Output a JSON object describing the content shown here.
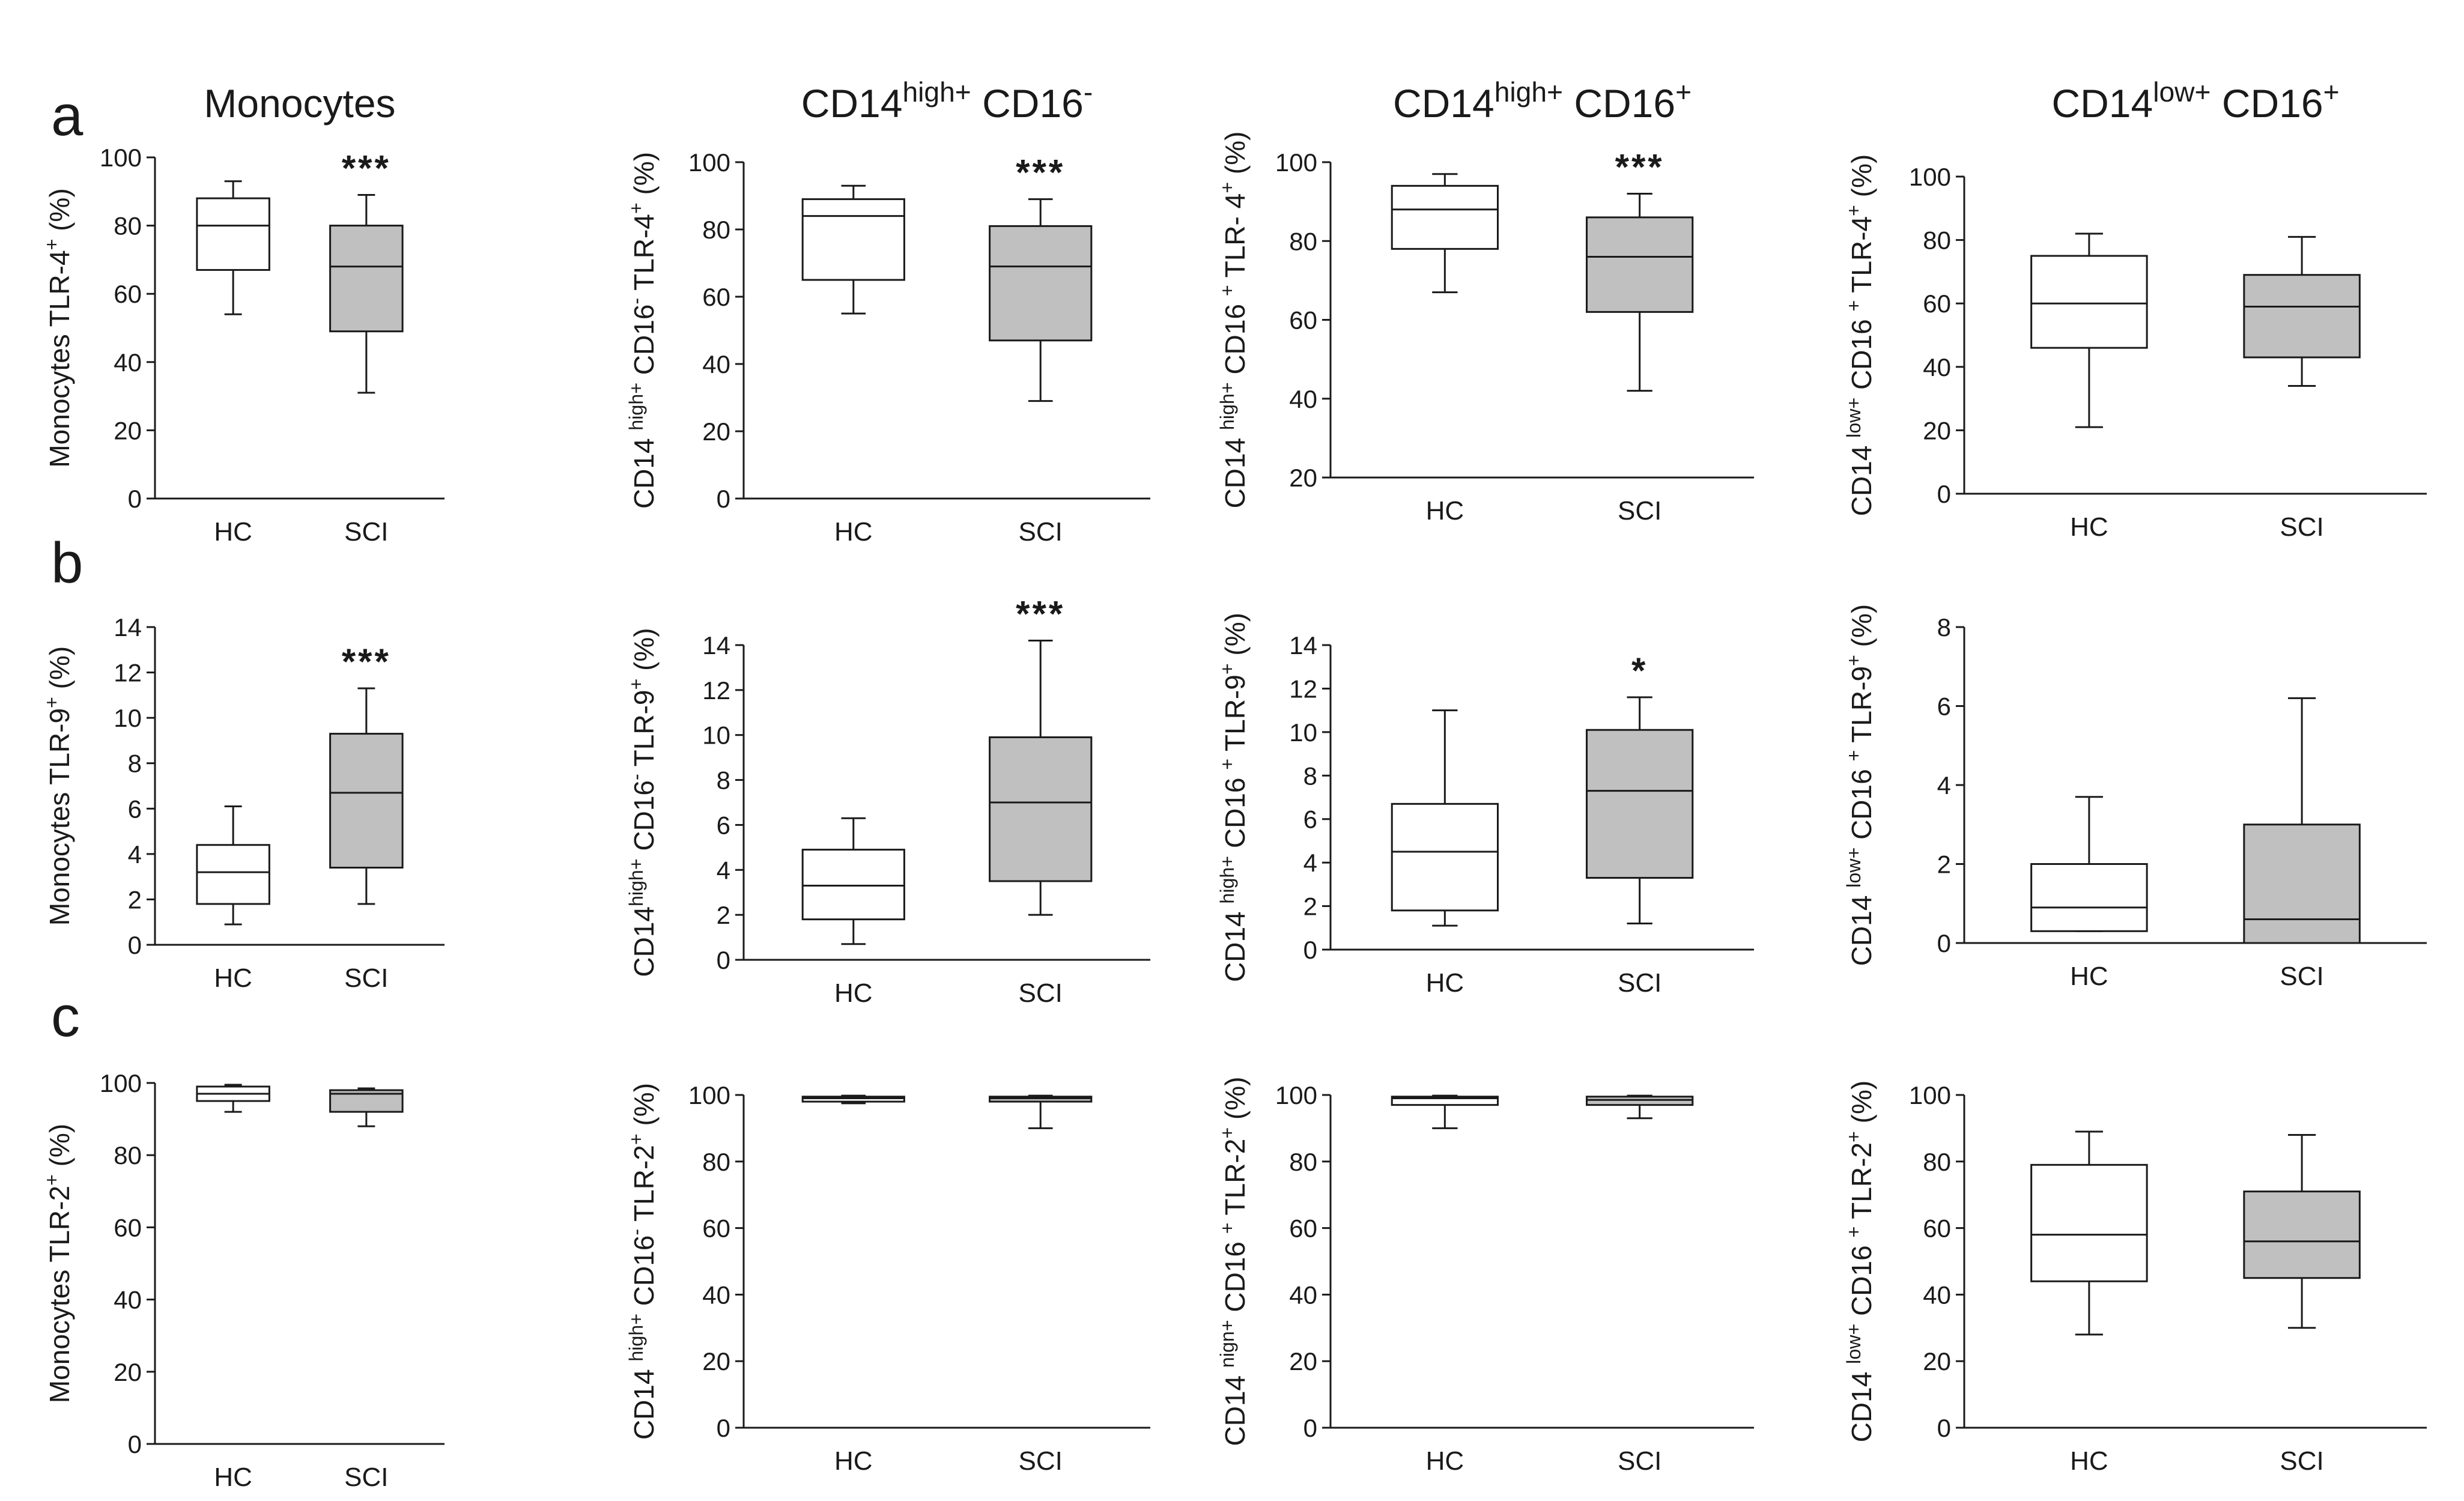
{
  "figure": {
    "column_titles": [
      {
        "main": "Monocytes",
        "parts": []
      },
      {
        "main": "",
        "parts": [
          {
            "t": "CD14",
            "s": "n"
          },
          {
            "t": "high+",
            "s": "sup"
          },
          {
            "t": " CD16",
            "s": "n"
          },
          {
            "t": "-",
            "s": "sup"
          }
        ]
      },
      {
        "main": "",
        "parts": [
          {
            "t": "CD14",
            "s": "n"
          },
          {
            "t": "high+",
            "s": "sup"
          },
          {
            "t": " CD16",
            "s": "n"
          },
          {
            "t": "+",
            "s": "sup"
          }
        ]
      },
      {
        "main": "",
        "parts": [
          {
            "t": "CD14",
            "s": "n"
          },
          {
            "t": "low+",
            "s": "sup"
          },
          {
            "t": " CD16",
            "s": "n"
          },
          {
            "t": "+",
            "s": "sup"
          }
        ]
      }
    ],
    "row_letters": [
      "a",
      "b",
      "c"
    ],
    "colors": {
      "hc_fill": "#ffffff",
      "sci_fill": "#c0c0c0",
      "stroke": "#1a1a1a"
    }
  },
  "chart_data": [
    {
      "id": "a1",
      "type": "box",
      "categories": [
        "HC",
        "SCI"
      ],
      "ylim": [
        0,
        100
      ],
      "ticks": [
        0,
        20,
        40,
        60,
        80,
        100
      ],
      "ylabel": [
        {
          "t": "Monocytes TLR-4",
          "s": "n"
        },
        {
          "t": "+",
          "s": "sup"
        },
        {
          "t": " (%)",
          "s": "n"
        }
      ],
      "boxes": [
        {
          "min": 54,
          "q1": 67,
          "median": 80,
          "q3": 88,
          "max": 93
        },
        {
          "min": 31,
          "q1": 49,
          "median": 68,
          "q3": 80,
          "max": 89
        }
      ],
      "significance": "***"
    },
    {
      "id": "a2",
      "type": "box",
      "categories": [
        "HC",
        "SCI"
      ],
      "ylim": [
        0,
        100
      ],
      "ticks": [
        0,
        20,
        40,
        60,
        80,
        100
      ],
      "ylabel": [
        {
          "t": "CD14 ",
          "s": "n"
        },
        {
          "t": "high+",
          "s": "sup"
        },
        {
          "t": " CD16",
          "s": "n"
        },
        {
          "t": "-",
          "s": "sup"
        },
        {
          "t": " TLR-4",
          "s": "n"
        },
        {
          "t": "+",
          "s": "sup"
        },
        {
          "t": " (%)",
          "s": "n"
        }
      ],
      "boxes": [
        {
          "min": 55,
          "q1": 65,
          "median": 84,
          "q3": 89,
          "max": 93
        },
        {
          "min": 29,
          "q1": 47,
          "median": 69,
          "q3": 81,
          "max": 89
        }
      ],
      "significance": "***"
    },
    {
      "id": "a3",
      "type": "box",
      "categories": [
        "HC",
        "SCI"
      ],
      "ylim": [
        20,
        100
      ],
      "ticks": [
        20,
        40,
        60,
        80,
        100
      ],
      "ylabel": [
        {
          "t": "CD14 ",
          "s": "n"
        },
        {
          "t": "high+",
          "s": "sup"
        },
        {
          "t": " CD16 ",
          "s": "n"
        },
        {
          "t": "+",
          "s": "sup"
        },
        {
          "t": " TLR- 4",
          "s": "n"
        },
        {
          "t": "+",
          "s": "sup"
        },
        {
          "t": " (%)",
          "s": "n"
        }
      ],
      "boxes": [
        {
          "min": 67,
          "q1": 78,
          "median": 88,
          "q3": 94,
          "max": 97
        },
        {
          "min": 42,
          "q1": 62,
          "median": 76,
          "q3": 86,
          "max": 92
        }
      ],
      "significance": "***"
    },
    {
      "id": "a4",
      "type": "box",
      "categories": [
        "HC",
        "SCI"
      ],
      "ylim": [
        0,
        100
      ],
      "ticks": [
        0,
        20,
        40,
        60,
        80,
        100
      ],
      "ylabel": [
        {
          "t": "CD14 ",
          "s": "n"
        },
        {
          "t": "low+",
          "s": "sup"
        },
        {
          "t": " CD16 ",
          "s": "n"
        },
        {
          "t": "+",
          "s": "sup"
        },
        {
          "t": " TLR-4",
          "s": "n"
        },
        {
          "t": "+",
          "s": "sup"
        },
        {
          "t": " (%)",
          "s": "n"
        }
      ],
      "boxes": [
        {
          "min": 21,
          "q1": 46,
          "median": 60,
          "q3": 75,
          "max": 82
        },
        {
          "min": 34,
          "q1": 43,
          "median": 59,
          "q3": 69,
          "max": 81
        }
      ],
      "significance": ""
    },
    {
      "id": "b1",
      "type": "box",
      "categories": [
        "HC",
        "SCI"
      ],
      "ylim": [
        0,
        14
      ],
      "ticks": [
        0,
        2,
        4,
        6,
        8,
        10,
        12,
        14
      ],
      "ylabel": [
        {
          "t": "Monocytes TLR-9",
          "s": "n"
        },
        {
          "t": "+",
          "s": "sup"
        },
        {
          "t": " (%)",
          "s": "n"
        }
      ],
      "boxes": [
        {
          "min": 0.9,
          "q1": 1.8,
          "median": 3.2,
          "q3": 4.4,
          "max": 6.1
        },
        {
          "min": 1.8,
          "q1": 3.4,
          "median": 6.7,
          "q3": 9.3,
          "max": 11.3
        }
      ],
      "significance": "***"
    },
    {
      "id": "b2",
      "type": "box",
      "categories": [
        "HC",
        "SCI"
      ],
      "ylim": [
        0,
        14
      ],
      "ticks": [
        0,
        2,
        4,
        6,
        8,
        10,
        12,
        14
      ],
      "ylabel": [
        {
          "t": "CD14",
          "s": "n"
        },
        {
          "t": "high+",
          "s": "sup"
        },
        {
          "t": " CD16",
          "s": "n"
        },
        {
          "t": "-",
          "s": "sup"
        },
        {
          "t": " TLR-9",
          "s": "n"
        },
        {
          "t": "+",
          "s": "sup"
        },
        {
          "t": " (%)",
          "s": "n"
        }
      ],
      "boxes": [
        {
          "min": 0.7,
          "q1": 1.8,
          "median": 3.3,
          "q3": 4.9,
          "max": 6.3
        },
        {
          "min": 2.0,
          "q1": 3.5,
          "median": 7.0,
          "q3": 9.9,
          "max": 14.2
        }
      ],
      "significance": "***"
    },
    {
      "id": "b3",
      "type": "box",
      "categories": [
        "HC",
        "SCI"
      ],
      "ylim": [
        0,
        14
      ],
      "ticks": [
        0,
        2,
        4,
        6,
        8,
        10,
        12,
        14
      ],
      "ylabel": [
        {
          "t": "CD14 ",
          "s": "n"
        },
        {
          "t": "high+",
          "s": "sup"
        },
        {
          "t": " CD16 ",
          "s": "n"
        },
        {
          "t": "+",
          "s": "sup"
        },
        {
          "t": " TLR-9",
          "s": "n"
        },
        {
          "t": "+",
          "s": "sup"
        },
        {
          "t": " (%)",
          "s": "n"
        }
      ],
      "boxes": [
        {
          "min": 1.1,
          "q1": 1.8,
          "median": 4.5,
          "q3": 6.7,
          "max": 11.0
        },
        {
          "min": 1.2,
          "q1": 3.3,
          "median": 7.3,
          "q3": 10.1,
          "max": 11.6
        }
      ],
      "significance": "*"
    },
    {
      "id": "b4",
      "type": "box",
      "categories": [
        "HC",
        "SCI"
      ],
      "ylim": [
        0,
        8
      ],
      "ticks": [
        0,
        2,
        4,
        6,
        8
      ],
      "ylabel": [
        {
          "t": "CD14 ",
          "s": "n"
        },
        {
          "t": "low+",
          "s": "sup"
        },
        {
          "t": " CD16 ",
          "s": "n"
        },
        {
          "t": "+",
          "s": "sup"
        },
        {
          "t": " TLR-9",
          "s": "n"
        },
        {
          "t": "+",
          "s": "sup"
        },
        {
          "t": " (%)",
          "s": "n"
        }
      ],
      "boxes": [
        {
          "min": 0.3,
          "q1": 0.3,
          "median": 0.9,
          "q3": 2.0,
          "max": 3.7
        },
        {
          "min": 0,
          "q1": 0,
          "median": 0.6,
          "q3": 3.0,
          "max": 6.2
        }
      ],
      "significance": ""
    },
    {
      "id": "c1",
      "type": "box",
      "categories": [
        "HC",
        "SCI"
      ],
      "ylim": [
        0,
        100
      ],
      "ticks": [
        0,
        20,
        40,
        60,
        80,
        100
      ],
      "ylabel": [
        {
          "t": "Monocytes  TLR-2",
          "s": "n"
        },
        {
          "t": "+",
          "s": "sup"
        },
        {
          "t": " (%)",
          "s": "n"
        }
      ],
      "boxes": [
        {
          "min": 92,
          "q1": 95,
          "median": 97,
          "q3": 99,
          "max": 99.5
        },
        {
          "min": 88,
          "q1": 92,
          "median": 97,
          "q3": 98,
          "max": 98.5
        }
      ],
      "significance": ""
    },
    {
      "id": "c2",
      "type": "box",
      "categories": [
        "HC",
        "SCI"
      ],
      "ylim": [
        0,
        100
      ],
      "ticks": [
        0,
        20,
        40,
        60,
        80,
        100
      ],
      "ylabel": [
        {
          "t": "CD14 ",
          "s": "n"
        },
        {
          "t": "high+",
          "s": "sup"
        },
        {
          "t": " CD16",
          "s": "n"
        },
        {
          "t": "-",
          "s": "sup"
        },
        {
          "t": " TLR-2",
          "s": "n"
        },
        {
          "t": "+",
          "s": "sup"
        },
        {
          "t": " (%)",
          "s": "n"
        }
      ],
      "boxes": [
        {
          "min": 97.5,
          "q1": 98,
          "median": 99,
          "q3": 99.5,
          "max": 99.8
        },
        {
          "min": 90,
          "q1": 98,
          "median": 99,
          "q3": 99.5,
          "max": 99.8
        }
      ],
      "significance": ""
    },
    {
      "id": "c3",
      "type": "box",
      "categories": [
        "HC",
        "SCI"
      ],
      "ylim": [
        0,
        100
      ],
      "ticks": [
        0,
        20,
        40,
        60,
        80,
        100
      ],
      "ylabel": [
        {
          "t": "CD14 ",
          "s": "n"
        },
        {
          "t": "nign+",
          "s": "sup"
        },
        {
          "t": " CD16 ",
          "s": "n"
        },
        {
          "t": "+",
          "s": "sup"
        },
        {
          "t": " TLR-2",
          "s": "n"
        },
        {
          "t": "+",
          "s": "sup"
        },
        {
          "t": " (%)",
          "s": "n"
        }
      ],
      "boxes": [
        {
          "min": 90,
          "q1": 97,
          "median": 99,
          "q3": 99.5,
          "max": 99.8
        },
        {
          "min": 93,
          "q1": 97,
          "median": 98.5,
          "q3": 99.5,
          "max": 99.8
        }
      ],
      "significance": ""
    },
    {
      "id": "c4",
      "type": "box",
      "categories": [
        "HC",
        "SCI"
      ],
      "ylim": [
        0,
        100
      ],
      "ticks": [
        0,
        20,
        40,
        60,
        80,
        100
      ],
      "ylabel": [
        {
          "t": "CD14 ",
          "s": "n"
        },
        {
          "t": "low+",
          "s": "sup"
        },
        {
          "t": " CD16 ",
          "s": "n"
        },
        {
          "t": "+",
          "s": "sup"
        },
        {
          "t": " TLR-2",
          "s": "n"
        },
        {
          "t": "+",
          "s": "sup"
        },
        {
          "t": " (%)",
          "s": "n"
        }
      ],
      "boxes": [
        {
          "min": 28,
          "q1": 44,
          "median": 58,
          "q3": 79,
          "max": 89
        },
        {
          "min": 30,
          "q1": 45,
          "median": 56,
          "q3": 71,
          "max": 88
        }
      ],
      "significance": ""
    }
  ]
}
